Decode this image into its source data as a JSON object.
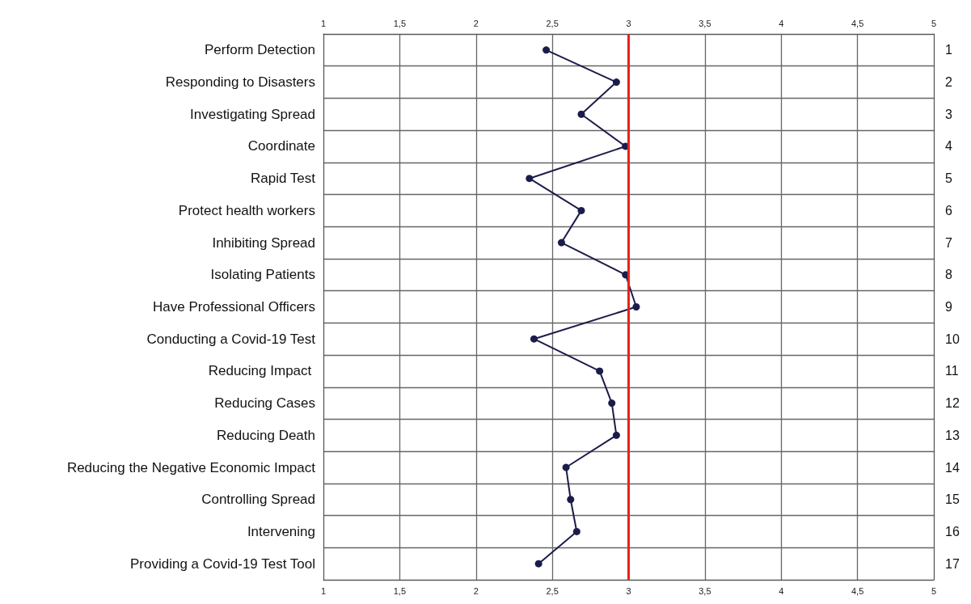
{
  "chart_data": {
    "type": "line",
    "orientation": "horizontal",
    "categories": [
      "Perform Detection",
      "Responding to Disasters",
      "Investigating Spread",
      "Coordinate",
      "Rapid Test",
      "Protect health workers",
      "Inhibiting Spread",
      "Isolating Patients",
      "Have Professional Officers",
      "Conducting a Covid-19 Test",
      "Reducing Impact ",
      "Reducing Cases",
      "Reducing Death",
      "Reducing the Negative Economic Impact",
      "Controlling Spread",
      "Intervening",
      "Providing a Covid-19 Test Tool"
    ],
    "y2_categories": [
      "1",
      "2",
      "3",
      "4",
      "5",
      "6",
      "7",
      "8",
      "9",
      "10",
      "11",
      "12",
      "13",
      "14",
      "15",
      "16",
      "17"
    ],
    "series": [
      {
        "color": "#1c1c4a",
        "values": [
          2.46,
          2.92,
          2.69,
          2.98,
          2.35,
          2.69,
          2.56,
          2.98,
          3.05,
          2.38,
          2.81,
          2.89,
          2.92,
          2.59,
          2.62,
          2.66,
          2.41
        ]
      }
    ],
    "xlim": [
      1,
      5
    ],
    "xticks": [
      1,
      {
        "value": 1.5,
        "label": "1,5"
      },
      2,
      {
        "value": 2.5,
        "label": "2,5"
      },
      3,
      {
        "value": 3.5,
        "label": "3,5"
      },
      4,
      {
        "value": 4.5,
        "label": "4,5"
      },
      5
    ],
    "x2lim": [
      1,
      5
    ],
    "x2ticks": [
      1,
      {
        "value": 1.5,
        "label": "1,5"
      },
      2,
      {
        "value": 2.5,
        "label": "2,5"
      },
      3,
      {
        "value": 3.5,
        "label": "3,5"
      },
      4,
      {
        "value": 4.5,
        "label": "4,5"
      },
      5
    ],
    "ref_lines": [
      {
        "axis": "x",
        "value": 3,
        "color": "#e8221b"
      }
    ],
    "grid": true,
    "marker": "circle",
    "line_style": "solid"
  }
}
